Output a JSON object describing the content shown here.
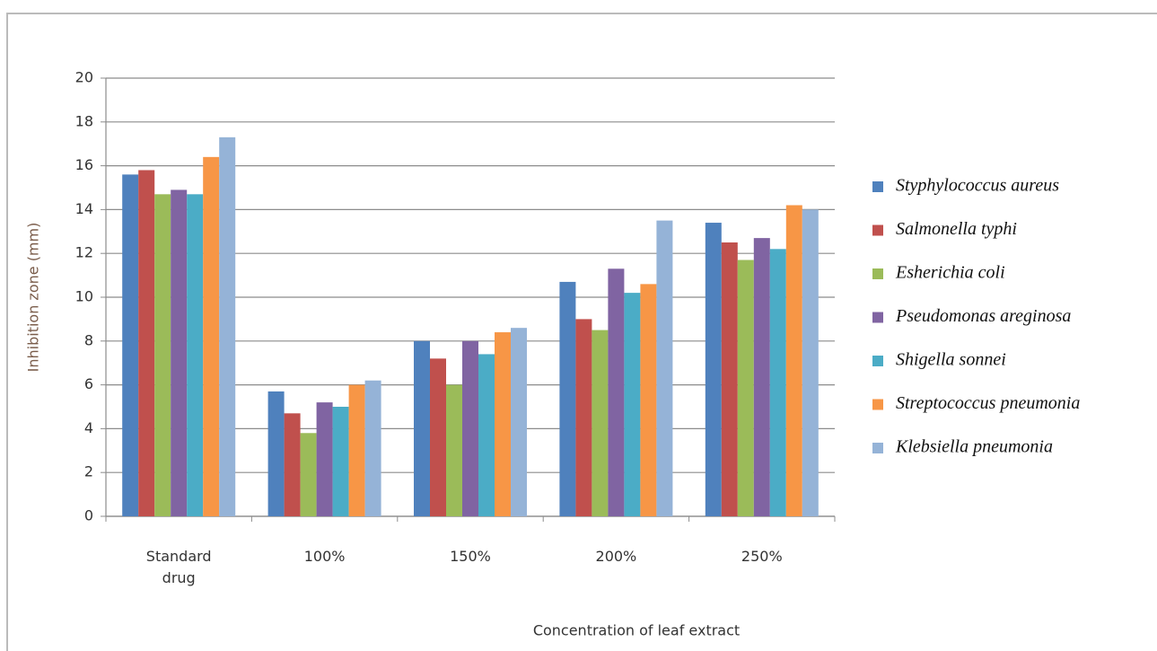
{
  "chart_data": {
    "type": "bar",
    "x_label": "Concentration of leaf extract",
    "y_label": "Inhibition zone (mm)",
    "categories": [
      "Standard drug",
      "100%",
      "150%",
      "200%",
      "250%"
    ],
    "series": [
      {
        "name": "Styphylococcus aureus",
        "color": "#4f81bd",
        "values": [
          15.6,
          5.7,
          8.0,
          10.7,
          13.4
        ]
      },
      {
        "name": "Salmonella typhi",
        "color": "#c0504d",
        "values": [
          15.8,
          4.7,
          7.2,
          9.0,
          12.5
        ]
      },
      {
        "name": "Esherichia coli",
        "color": "#9bbb59",
        "values": [
          14.7,
          3.8,
          6.0,
          8.5,
          11.7
        ]
      },
      {
        "name": "Pseudomonas areginosa",
        "color": "#8064a2",
        "values": [
          14.9,
          5.2,
          8.0,
          11.3,
          12.7
        ]
      },
      {
        "name": "Shigella sonnei",
        "color": "#4bacc6",
        "values": [
          14.7,
          5.0,
          7.4,
          10.2,
          12.2
        ]
      },
      {
        "name": "Streptococcus pneumonia",
        "color": "#f79646",
        "values": [
          16.4,
          6.0,
          8.4,
          10.6,
          14.2
        ]
      },
      {
        "name": "Klebsiella pneumonia",
        "color": "#95b3d7",
        "values": [
          17.3,
          6.2,
          8.6,
          13.5,
          14.0
        ]
      }
    ],
    "ylim": [
      0,
      20
    ],
    "yticks": [
      0,
      2,
      4,
      6,
      8,
      10,
      12,
      14,
      16,
      18,
      20
    ],
    "grid": true,
    "legend": "right"
  }
}
